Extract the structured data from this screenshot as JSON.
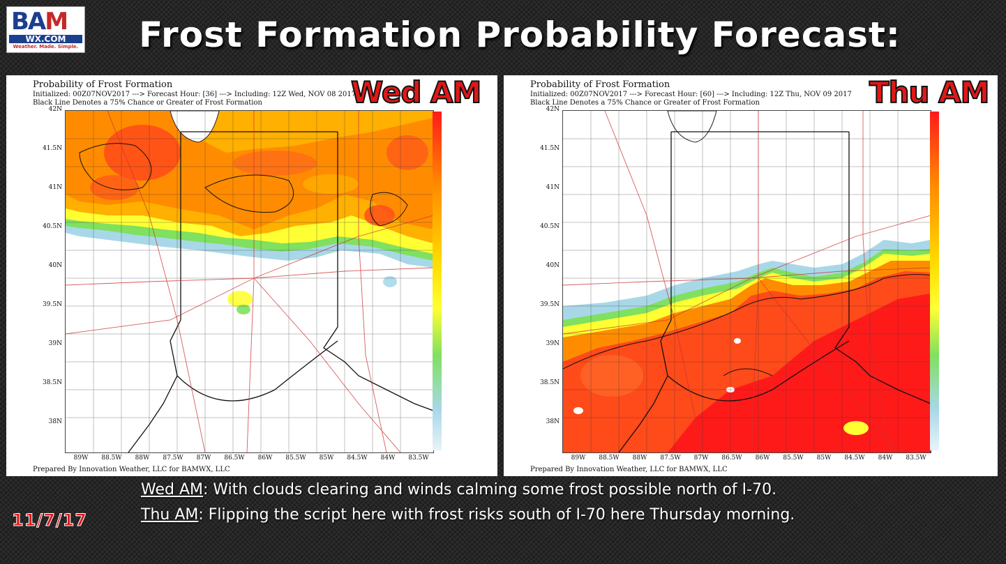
{
  "logo": {
    "letters": "BAMWX",
    "site": "WX.COM",
    "tagline": "Weather. Made. Simple."
  },
  "title": "Frost Formation Probability Forecast:",
  "colors": {
    "accent_red": "#e01818",
    "frost_high": "#ff1a1a",
    "frost_mid": "#ff8c00",
    "frost_low": "#ffff33",
    "frost_vlow": "#a8d8e8"
  },
  "panels": [
    {
      "badge": "Wed AM",
      "header_title": "Probability of Frost Formation",
      "header_init": "Initialized: 00Z07NOV2017 ---> Forecast Hour: [36] ---> Including: 12Z Wed, NOV 08 2017",
      "header_note": "Black Line Denotes a 75% Chance or Greater of Frost Formation",
      "footer": "Prepared By Innovation Weather, LLC for BAMWX, LLC"
    },
    {
      "badge": "Thu AM",
      "header_title": "Probability of Frost Formation",
      "header_init": "Initialized: 00Z07NOV2017 ---> Forecast Hour: [60] ---> Including: 12Z Thu, NOV 09 2017",
      "header_note": "Black Line Denotes a 75% Chance or Greater of Frost Formation",
      "footer": "Prepared By Innovation Weather, LLC for BAMWX, LLC"
    }
  ],
  "axes": {
    "lat_labels": [
      "42N",
      "41.5N",
      "41N",
      "40.5N",
      "40N",
      "39.5N",
      "39N",
      "38.5N",
      "38N"
    ],
    "lon_labels": [
      "89W",
      "88.5W",
      "88W",
      "87.5W",
      "87W",
      "86.5W",
      "86W",
      "85.5W",
      "85W",
      "84.5W",
      "84W",
      "83.5W"
    ]
  },
  "captions": [
    {
      "label": "Wed AM",
      "text": ": With clouds clearing and winds calming some frost possible north of I-70."
    },
    {
      "label": "Thu AM",
      "text": ": Flipping the script here with frost risks south of I-70 here Thursday morning."
    }
  ],
  "date": "11/7/17"
}
